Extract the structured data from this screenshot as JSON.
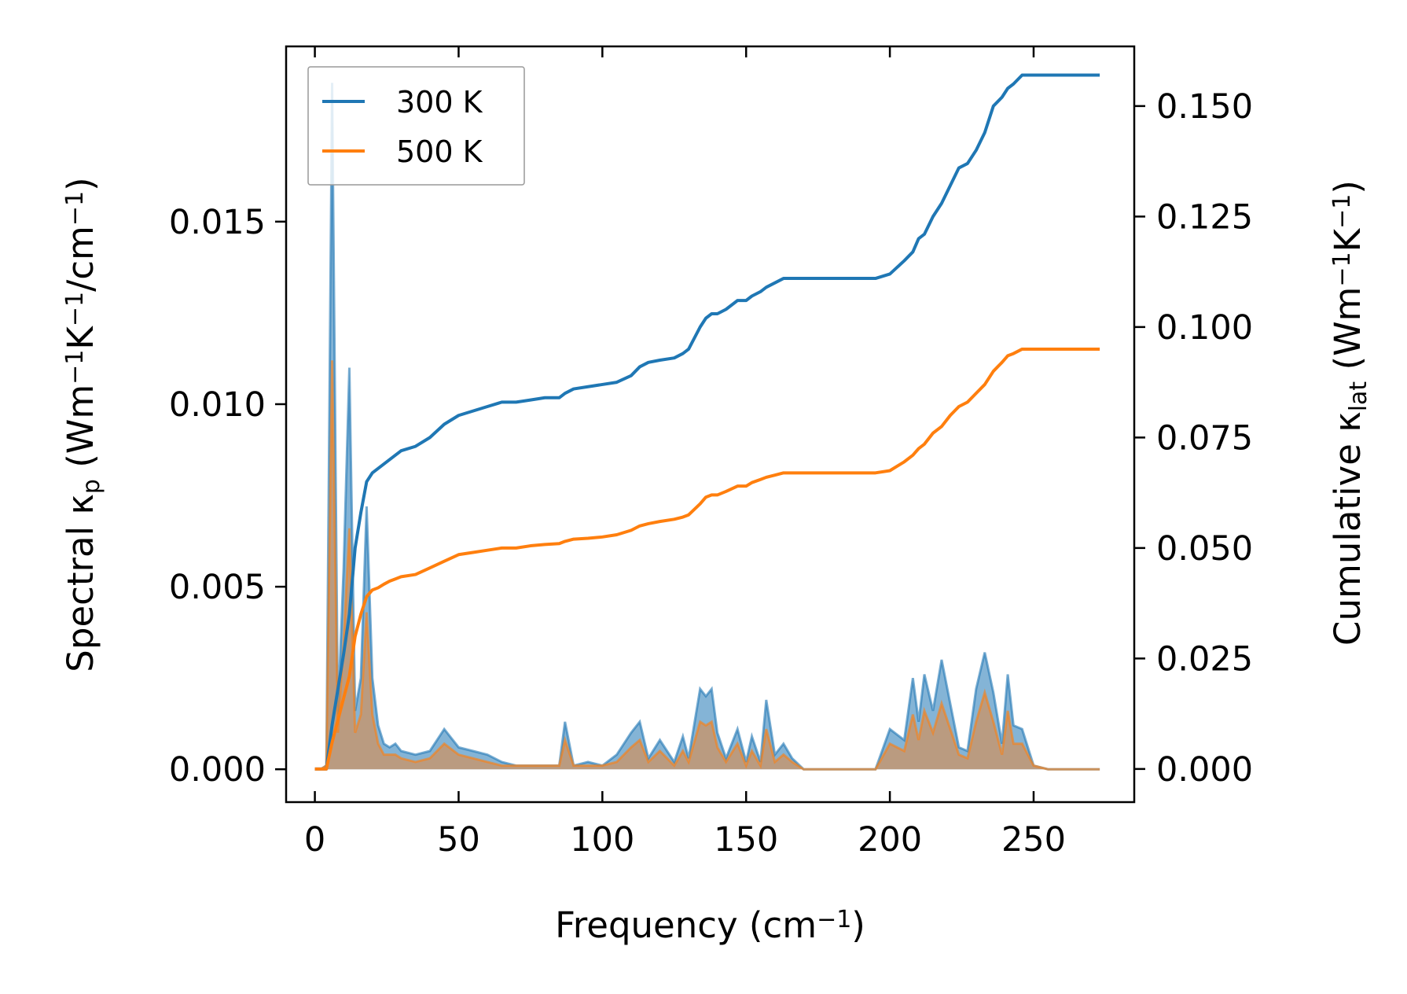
{
  "chart_data": {
    "type": "line",
    "title": "",
    "xlabel": "Frequency (cm",
    "xlabel_sup": "−1",
    "xlabel_tail": ")",
    "ylabel_left": {
      "pre": "Spectral κ",
      "sub": "p",
      "mid1": " (Wm",
      "sup1": "−1",
      "mid2": "K",
      "sup2": "−1",
      "mid3": "/cm",
      "sup3": "−1",
      "post": ")"
    },
    "ylabel_right": {
      "pre": "Cumulative κ",
      "sub": "lat",
      "mid1": " (Wm",
      "sup1": "−1",
      "mid2": "K",
      "sup2": "−1",
      "post": ")"
    },
    "xlim": [
      -10,
      285
    ],
    "ylim_left": [
      -0.0009,
      0.0198
    ],
    "ylim_right": [
      -0.0075,
      0.1635
    ],
    "xticks": [
      0,
      50,
      100,
      150,
      200,
      250
    ],
    "xtick_labels": [
      "0",
      "50",
      "100",
      "150",
      "200",
      "250"
    ],
    "yticks_left": [
      0.0,
      0.005,
      0.01,
      0.015
    ],
    "ytick_labels_left": [
      "0.000",
      "0.005",
      "0.010",
      "0.015"
    ],
    "yticks_right": [
      0.0,
      0.025,
      0.05,
      0.075,
      0.1,
      0.125,
      0.15
    ],
    "ytick_labels_right": [
      "0.000",
      "0.025",
      "0.050",
      "0.075",
      "0.100",
      "0.125",
      "0.150"
    ],
    "legend": {
      "position": "top-left",
      "entries": [
        "300 K",
        "500 K"
      ]
    },
    "spectral_x": [
      0,
      2,
      4,
      6,
      8,
      10,
      12,
      14,
      16,
      18,
      20,
      22,
      24,
      26,
      28,
      30,
      35,
      40,
      45,
      50,
      55,
      60,
      65,
      70,
      75,
      80,
      85,
      87,
      90,
      95,
      100,
      105,
      110,
      113,
      116,
      120,
      125,
      128,
      130,
      134,
      136,
      138,
      140,
      143,
      147,
      150,
      152,
      155,
      157,
      160,
      163,
      166,
      170,
      175,
      180,
      185,
      190,
      195,
      200,
      205,
      208,
      210,
      212,
      215,
      218,
      221,
      224,
      227,
      230,
      233,
      236,
      239,
      241,
      243,
      246,
      250,
      255,
      260,
      265,
      270,
      273
    ],
    "series": [
      {
        "name": "300 K",
        "color": "#1f77b4",
        "fill": "#1f77b4",
        "spectral": [
          0,
          0,
          0.0001,
          0.0188,
          0.0015,
          0.0055,
          0.011,
          0.0016,
          0.0025,
          0.0072,
          0.0025,
          0.0012,
          0.0007,
          0.0006,
          0.0007,
          0.0005,
          0.0004,
          0.0005,
          0.0011,
          0.0006,
          0.0005,
          0.0004,
          0.0002,
          0.0001,
          0.0001,
          0.0001,
          0.0001,
          0.0013,
          0.0001,
          0.0002,
          0.0001,
          0.0004,
          0.001,
          0.0013,
          0.0003,
          0.0008,
          0.0002,
          0.0009,
          0.0003,
          0.0022,
          0.002,
          0.0022,
          0.001,
          0.0003,
          0.0011,
          0.0002,
          0.0009,
          0.0002,
          0.0019,
          0.0004,
          0.0007,
          0.0003,
          0,
          0,
          0,
          0,
          0,
          0,
          0.0011,
          0.0008,
          0.0025,
          0.0013,
          0.0026,
          0.0016,
          0.003,
          0.0018,
          0.0006,
          0.0005,
          0.0022,
          0.0032,
          0.0021,
          0.0007,
          0.0026,
          0.0012,
          0.0011,
          0.0001,
          0,
          0,
          0,
          0,
          0
        ],
        "cumulative": [
          0,
          0,
          0,
          0.01,
          0.018,
          0.026,
          0.035,
          0.05,
          0.058,
          0.065,
          0.067,
          0.068,
          0.069,
          0.07,
          0.071,
          0.072,
          0.073,
          0.075,
          0.078,
          0.08,
          0.081,
          0.082,
          0.083,
          0.083,
          0.0835,
          0.084,
          0.084,
          0.085,
          0.086,
          0.0865,
          0.087,
          0.0875,
          0.089,
          0.091,
          0.092,
          0.0925,
          0.093,
          0.094,
          0.095,
          0.1,
          0.102,
          0.103,
          0.103,
          0.104,
          0.106,
          0.106,
          0.107,
          0.108,
          0.109,
          0.11,
          0.111,
          0.111,
          0.111,
          0.111,
          0.111,
          0.111,
          0.111,
          0.111,
          0.112,
          0.115,
          0.117,
          0.12,
          0.121,
          0.125,
          0.128,
          0.132,
          0.136,
          0.137,
          0.14,
          0.144,
          0.15,
          0.152,
          0.154,
          0.155,
          0.157,
          0.157,
          0.157,
          0.157,
          0.157,
          0.157,
          0.157
        ]
      },
      {
        "name": "500 K",
        "color": "#ff7f0e",
        "fill": "#c8956a",
        "spectral": [
          0,
          0,
          0.0001,
          0.0112,
          0.001,
          0.0035,
          0.0066,
          0.001,
          0.0015,
          0.0043,
          0.0015,
          0.0007,
          0.0004,
          0.0004,
          0.0004,
          0.0003,
          0.0002,
          0.0003,
          0.0007,
          0.0004,
          0.0003,
          0.0002,
          0.0001,
          0.0001,
          0.0001,
          0.0001,
          0.0001,
          0.0008,
          0.0001,
          0.0001,
          0.0001,
          0.0002,
          0.0006,
          0.0008,
          0.0002,
          0.0005,
          0.0001,
          0.0005,
          0.0002,
          0.0013,
          0.0012,
          0.0013,
          0.0006,
          0.0002,
          0.0007,
          0.0001,
          0.0005,
          0.0001,
          0.0011,
          0.0002,
          0.0004,
          0.0002,
          0,
          0,
          0,
          0,
          0,
          0,
          0.0007,
          0.0005,
          0.0015,
          0.0008,
          0.0016,
          0.001,
          0.0018,
          0.0011,
          0.0004,
          0.0003,
          0.0013,
          0.0021,
          0.0013,
          0.0004,
          0.0016,
          0.0007,
          0.0007,
          0.0001,
          0,
          0,
          0,
          0,
          0
        ],
        "cumulative": [
          0,
          0,
          0,
          0.006,
          0.011,
          0.016,
          0.021,
          0.03,
          0.035,
          0.039,
          0.0405,
          0.041,
          0.0418,
          0.0425,
          0.043,
          0.0435,
          0.044,
          0.0455,
          0.047,
          0.0485,
          0.049,
          0.0495,
          0.05,
          0.05,
          0.0505,
          0.0508,
          0.051,
          0.0515,
          0.052,
          0.0522,
          0.0525,
          0.053,
          0.054,
          0.055,
          0.0555,
          0.056,
          0.0565,
          0.057,
          0.0575,
          0.06,
          0.0615,
          0.062,
          0.062,
          0.0628,
          0.064,
          0.064,
          0.0648,
          0.0655,
          0.066,
          0.0665,
          0.067,
          0.067,
          0.067,
          0.067,
          0.067,
          0.067,
          0.067,
          0.067,
          0.0675,
          0.0695,
          0.071,
          0.0725,
          0.0735,
          0.076,
          0.0775,
          0.08,
          0.082,
          0.083,
          0.085,
          0.087,
          0.09,
          0.092,
          0.0935,
          0.094,
          0.095,
          0.095,
          0.095,
          0.095,
          0.095,
          0.095,
          0.095
        ]
      }
    ]
  }
}
